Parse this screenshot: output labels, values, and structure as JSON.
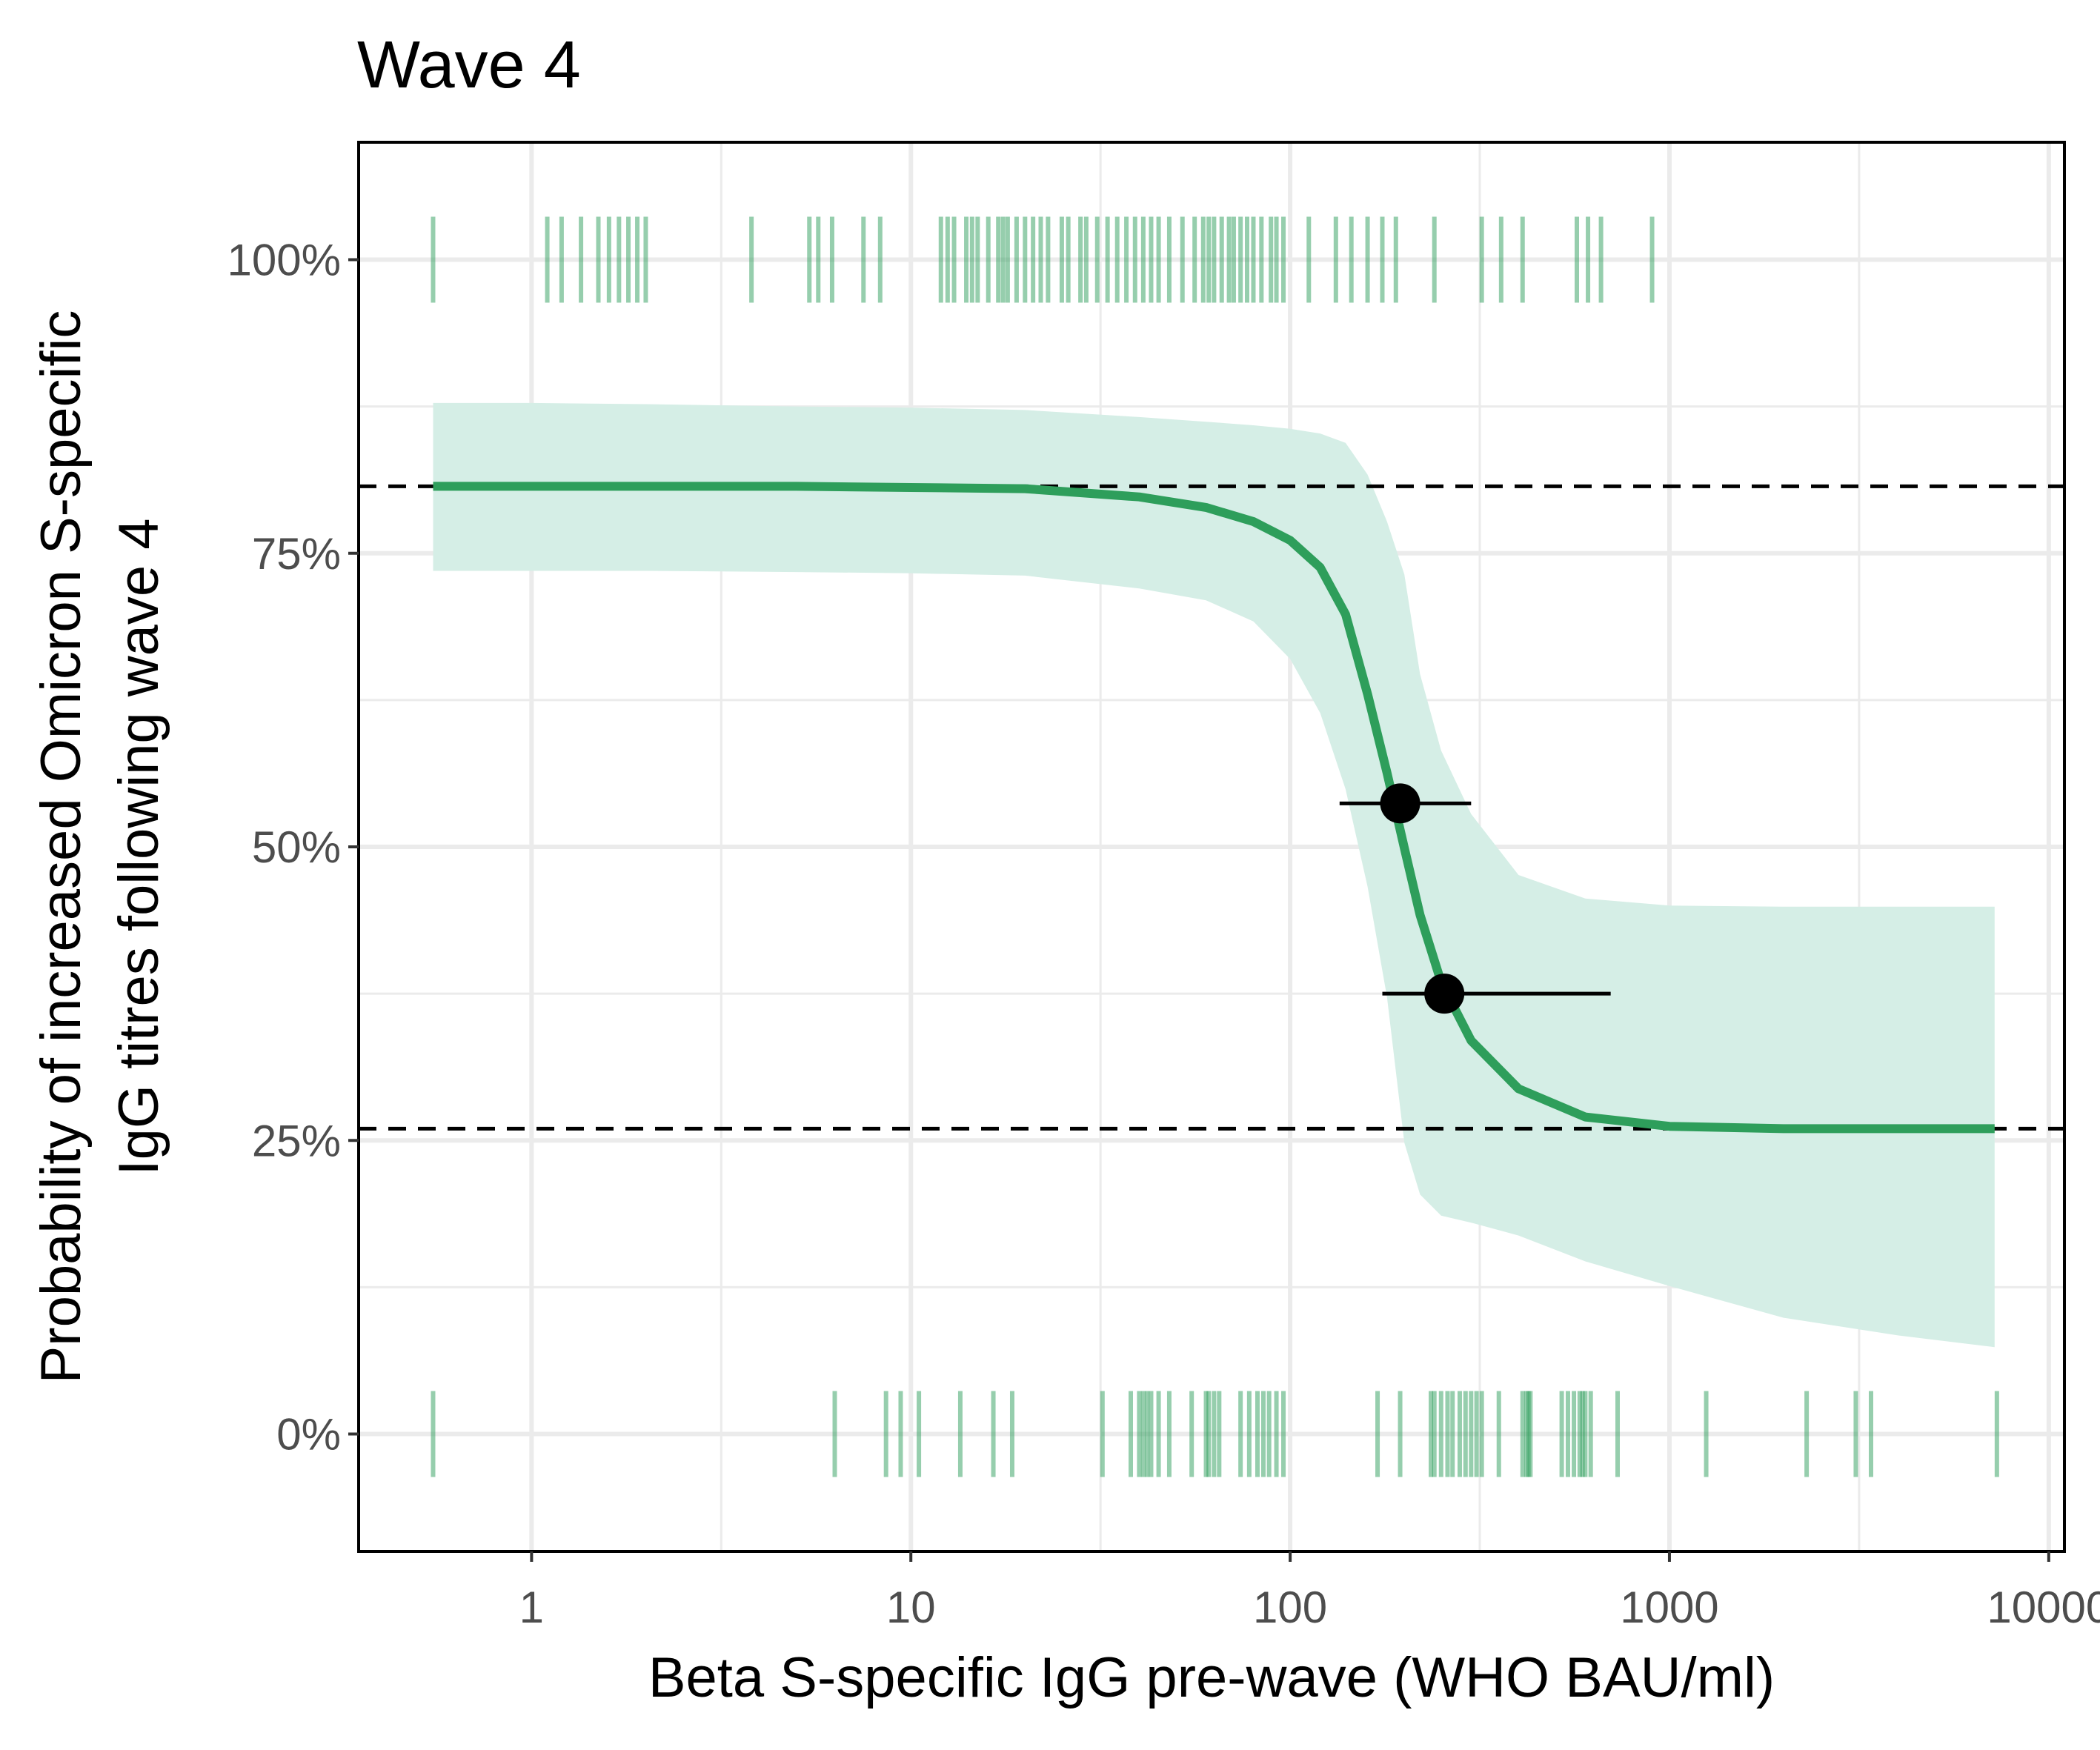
{
  "chart_data": {
    "type": "line",
    "title": "Wave 4",
    "xlabel": "Beta S-specific IgG pre-wave (WHO BAU/ml)",
    "ylabel_lines": [
      "Probability of increased Omicron S-specific",
      "IgG titres following wave 4"
    ],
    "x_scale": "log10",
    "xlim": [
      0.35,
      11000
    ],
    "ylim": [
      -0.1,
      1.1
    ],
    "x_ticks": [
      1,
      10,
      100,
      1000,
      10000
    ],
    "x_tick_labels": [
      "1",
      "10",
      "100",
      "1000",
      "10000"
    ],
    "y_ticks": [
      0,
      0.25,
      0.5,
      0.75,
      1.0
    ],
    "y_tick_labels": [
      "0%",
      "25%",
      "50%",
      "75%",
      "100%"
    ],
    "grid": true,
    "colors": {
      "curve": "#2e9e5b",
      "ribbon": "#d5eee6",
      "rug": "#2e9e5b",
      "points": "#000000",
      "reference_lines": "#000000",
      "grid": "#ebebeb"
    },
    "fitted_curve": {
      "x": [
        0.55,
        1,
        2,
        5,
        10,
        20,
        40,
        60,
        80,
        100,
        120,
        140,
        160,
        180,
        200,
        220,
        250,
        300,
        400,
        600,
        1000,
        2000,
        4000,
        7200
      ],
      "y": [
        0.807,
        0.807,
        0.807,
        0.807,
        0.806,
        0.805,
        0.798,
        0.789,
        0.777,
        0.761,
        0.738,
        0.698,
        0.63,
        0.563,
        0.499,
        0.442,
        0.385,
        0.335,
        0.294,
        0.27,
        0.262,
        0.26,
        0.26,
        0.26
      ]
    },
    "confidence_band": {
      "x": [
        0.55,
        1,
        2,
        5,
        10,
        20,
        40,
        60,
        80,
        100,
        120,
        140,
        160,
        180,
        200,
        220,
        250,
        300,
        400,
        600,
        1000,
        2000,
        4000,
        7200
      ],
      "lower": [
        0.735,
        0.735,
        0.735,
        0.734,
        0.733,
        0.731,
        0.72,
        0.71,
        0.692,
        0.66,
        0.614,
        0.549,
        0.466,
        0.372,
        0.248,
        0.204,
        0.186,
        0.18,
        0.169,
        0.147,
        0.126,
        0.099,
        0.084,
        0.074
      ],
      "upper": [
        0.878,
        0.878,
        0.877,
        0.875,
        0.874,
        0.872,
        0.866,
        0.862,
        0.859,
        0.856,
        0.852,
        0.844,
        0.817,
        0.777,
        0.732,
        0.647,
        0.582,
        0.528,
        0.476,
        0.456,
        0.45,
        0.449,
        0.449,
        0.449
      ]
    },
    "reference_lines_y": [
      0.807,
      0.26
    ],
    "points": [
      {
        "x": 195,
        "y": 0.537,
        "x_low": 135,
        "x_high": 300
      },
      {
        "x": 255,
        "y": 0.375,
        "x_low": 175,
        "x_high": 700
      }
    ],
    "rug_top_x": [
      0.55,
      1.1,
      1.2,
      1.35,
      1.5,
      1.6,
      1.7,
      1.8,
      1.9,
      2.0,
      3.8,
      5.4,
      5.7,
      6.2,
      7.5,
      8.3,
      12,
      12.5,
      13,
      14,
      14.5,
      15,
      16,
      17,
      17.5,
      18,
      19,
      20,
      21,
      22,
      23,
      25,
      26,
      28,
      29,
      31,
      33,
      35,
      37,
      39,
      41,
      43,
      45,
      48,
      52,
      56,
      59,
      61,
      63,
      66,
      69,
      71,
      74,
      77,
      80,
      84,
      89,
      92,
      96,
      112,
      132,
      145,
      160,
      175,
      190,
      240,
      320,
      360,
      410,
      570,
      610,
      660,
      900
    ],
    "rug_bottom_x": [
      0.55,
      6.3,
      8.6,
      9.4,
      10.5,
      13.5,
      16.5,
      18.5,
      32,
      38,
      40,
      41,
      42,
      43,
      45,
      48,
      55,
      60,
      61,
      63,
      65,
      74,
      78,
      82,
      85,
      88,
      92,
      96,
      170,
      195,
      235,
      240,
      250,
      260,
      268,
      280,
      290,
      300,
      310,
      320,
      355,
      410,
      420,
      425,
      430,
      520,
      540,
      560,
      580,
      590,
      600,
      620,
      730,
      1250,
      2300,
      3100,
      3400,
      7300
    ]
  }
}
